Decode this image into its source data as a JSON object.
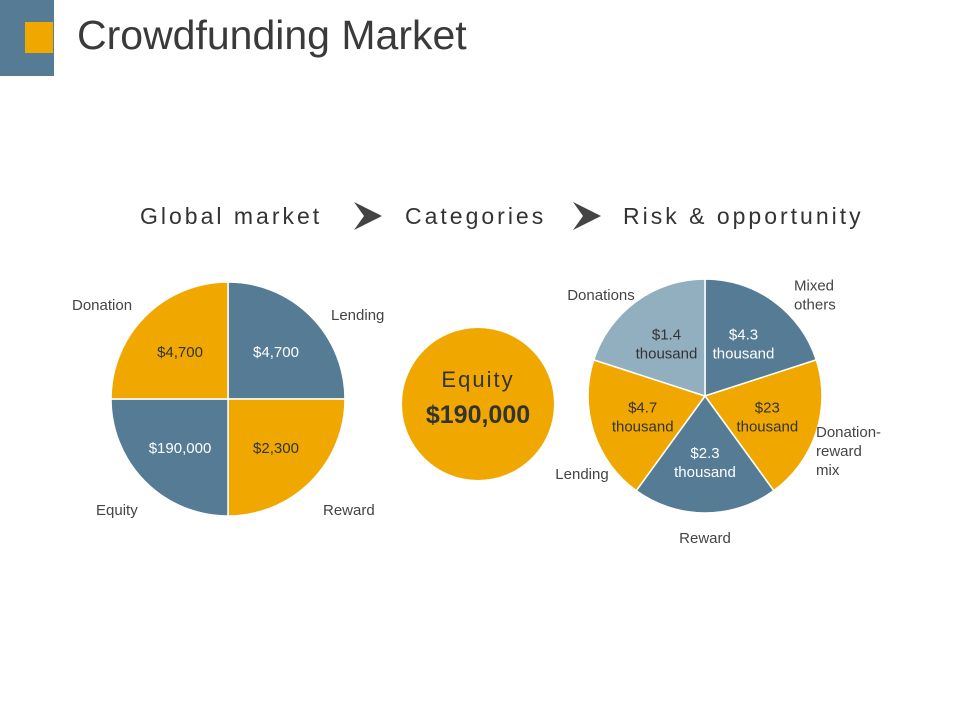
{
  "title": "Crowdfunding Market",
  "steps": [
    "Global market",
    "Categories",
    "Risk & opportunity"
  ],
  "icons": {
    "step_arrow": "chevron-right-icon"
  },
  "colors": {
    "accent": "#f0a800",
    "primary": "#557b95",
    "light": "#92afc0",
    "text": "#333333",
    "title_block": "#557b95"
  },
  "chart_data": [
    {
      "type": "pie",
      "title": "",
      "series": [
        {
          "values": [
            4700,
            4700,
            2300,
            190000
          ],
          "categories": [
            "Lending",
            "Donation",
            "Reward",
            "Equity"
          ],
          "labels": [
            "$4,700",
            "$4,700",
            "$2,300",
            "$190,000"
          ],
          "note_equal_sectors": "drawn as four equal quadrants"
        }
      ],
      "legend": "outside labels",
      "slices": [
        {
          "category": "Lending",
          "label": "$4,700",
          "color": "#557b95"
        },
        {
          "category": "Reward",
          "label": "$2,300",
          "color": "#f0a800"
        },
        {
          "category": "Equity",
          "label": "$190,000",
          "color": "#557b95"
        },
        {
          "category": "Donation",
          "label": "$4,700",
          "color": "#f0a800"
        }
      ]
    },
    {
      "type": "pie",
      "title": "Equity",
      "value": 190000,
      "label": "$190,000",
      "slices": [
        {
          "category": "Equity",
          "label": "$190,000",
          "color": "#f0a800"
        }
      ]
    },
    {
      "type": "pie",
      "title": "",
      "legend": "outside labels",
      "slices": [
        {
          "category": "Mixed others",
          "label": "$4.3 thousand",
          "color": "#557b95"
        },
        {
          "category": "Donation-reward mix",
          "label": "$23 thousand",
          "color": "#f0a800"
        },
        {
          "category": "Reward",
          "label": "$2.3 thousand",
          "color": "#557b95"
        },
        {
          "category": "Lending",
          "label": "$4.7 thousand",
          "color": "#f0a800"
        },
        {
          "category": "Donations",
          "label": "$1.4 thousand",
          "color": "#92afc0"
        }
      ]
    }
  ]
}
